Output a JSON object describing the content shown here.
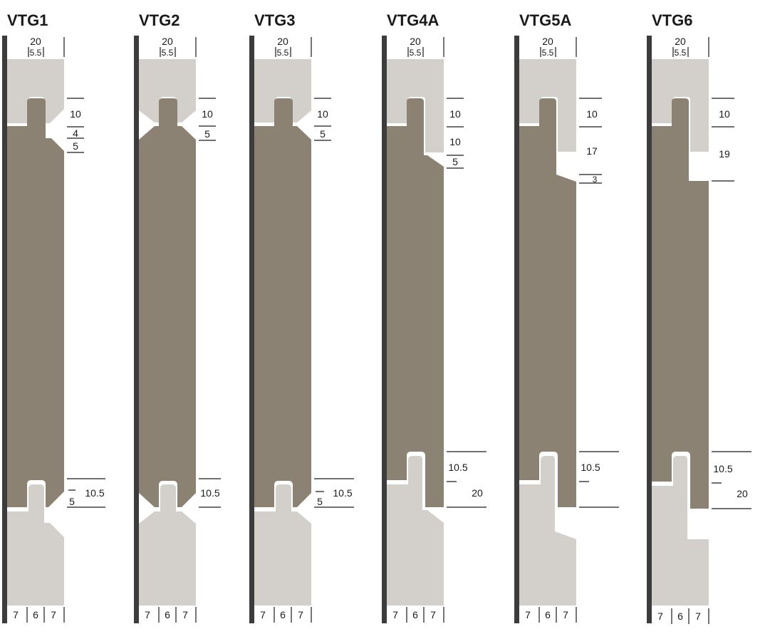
{
  "colors": {
    "board": "#8c8273",
    "neighbor": "#d3cfca",
    "wall": "#3c3c3c",
    "text": "#1a1a1a"
  },
  "profiles": [
    {
      "name": "VTG1",
      "top_width": "20",
      "tongue": "5.5",
      "dims": [
        "10",
        "4",
        "5",
        "5",
        "10.5"
      ],
      "bottom": [
        "7",
        "6",
        "7"
      ]
    },
    {
      "name": "VTG2",
      "top_width": "20",
      "tongue": "5.5",
      "dims": [
        "10",
        "5",
        "10.5"
      ],
      "bottom": [
        "7",
        "6",
        "7"
      ]
    },
    {
      "name": "VTG3",
      "top_width": "20",
      "tongue": "5.5",
      "dims": [
        "10",
        "5",
        "5",
        "10.5"
      ],
      "bottom": [
        "7",
        "6",
        "7"
      ]
    },
    {
      "name": "VTG4A",
      "top_width": "20",
      "tongue": "5.5",
      "dims": [
        "10",
        "10",
        "5",
        "10.5",
        "20"
      ],
      "bottom": [
        "7",
        "6",
        "7"
      ]
    },
    {
      "name": "VTG5A",
      "top_width": "20",
      "tongue": "5.5",
      "dims": [
        "10",
        "17",
        "3",
        "10.5"
      ],
      "bottom": [
        "7",
        "6",
        "7"
      ]
    },
    {
      "name": "VTG6",
      "top_width": "20",
      "tongue": "5.5",
      "dims": [
        "10",
        "19",
        "10.5",
        "20"
      ],
      "bottom": [
        "7",
        "6",
        "7"
      ]
    }
  ]
}
